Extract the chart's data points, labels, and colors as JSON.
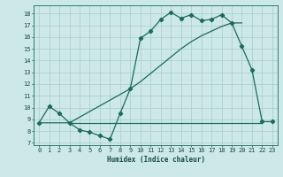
{
  "xlabel": "Humidex (Indice chaleur)",
  "bg_color": "#cce8e8",
  "grid_color": "#aacccc",
  "line_color": "#1a6b5a",
  "xlim": [
    -0.5,
    23.5
  ],
  "ylim": [
    6.8,
    18.7
  ],
  "xticks": [
    0,
    1,
    2,
    3,
    4,
    5,
    6,
    7,
    8,
    9,
    10,
    11,
    12,
    13,
    14,
    15,
    16,
    17,
    18,
    19,
    20,
    21,
    22,
    23
  ],
  "yticks": [
    7,
    8,
    9,
    10,
    11,
    12,
    13,
    14,
    15,
    16,
    17,
    18
  ],
  "line1_x": [
    0,
    1,
    2,
    3,
    4,
    5,
    6,
    7,
    8,
    9,
    10,
    11,
    12,
    13,
    14,
    15,
    16,
    17,
    18,
    19,
    20,
    21,
    22,
    23
  ],
  "line1_y": [
    8.7,
    10.1,
    9.5,
    8.7,
    8.1,
    7.9,
    7.6,
    7.3,
    9.5,
    11.6,
    15.9,
    16.5,
    17.5,
    18.1,
    17.6,
    17.9,
    17.4,
    17.5,
    17.9,
    17.2,
    15.2,
    13.2,
    8.8,
    8.8
  ],
  "line2_x": [
    3,
    4,
    5,
    6,
    7,
    8,
    9,
    10,
    11,
    12,
    13,
    14,
    15,
    16,
    17,
    18,
    19,
    20,
    21,
    22
  ],
  "line2_y": [
    8.7,
    8.7,
    8.7,
    8.7,
    8.7,
    8.7,
    8.7,
    8.7,
    8.7,
    8.7,
    8.7,
    8.7,
    8.7,
    8.7,
    8.7,
    8.7,
    8.7,
    8.7,
    8.7,
    8.7
  ],
  "line3_x": [
    0,
    3,
    9,
    10,
    11,
    12,
    13,
    14,
    15,
    16,
    17,
    18,
    19,
    20
  ],
  "line3_y": [
    8.7,
    8.7,
    11.6,
    12.2,
    12.9,
    13.6,
    14.3,
    15.0,
    15.6,
    16.1,
    16.5,
    16.9,
    17.2,
    17.2
  ]
}
